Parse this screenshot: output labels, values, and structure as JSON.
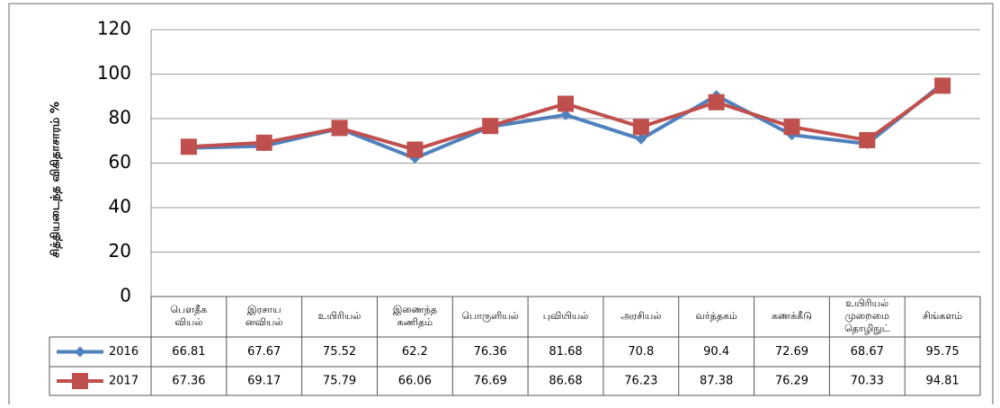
{
  "chart_data": {
    "type": "line",
    "ylabel": "சித்தியடைந்த விகிதாசாரம் %",
    "categories": [
      [
        "பௌதீக",
        "வியல்"
      ],
      [
        "இரசாய",
        "னவியல்"
      ],
      [
        "உயிரியல்"
      ],
      [
        "இணைந்த",
        "கணிதம்"
      ],
      [
        "பொருளியல்"
      ],
      [
        "புவியியல்"
      ],
      [
        "அரசியல்"
      ],
      [
        "வர்த்தகம்"
      ],
      [
        "கணக்கீடு"
      ],
      [
        "உயிரியல்",
        "முறைமை",
        "தொழிநுட்"
      ],
      [
        "சிங்களம்"
      ]
    ],
    "series": [
      {
        "name": "2016",
        "color": "#4f81bd",
        "marker": "diamond",
        "values": [
          66.81,
          67.67,
          75.52,
          62.2,
          76.36,
          81.68,
          70.8,
          90.4,
          72.69,
          68.67,
          95.75
        ]
      },
      {
        "name": "2017",
        "color": "#c0504d",
        "marker": "square",
        "values": [
          67.36,
          69.17,
          75.79,
          66.06,
          76.69,
          86.68,
          76.23,
          87.38,
          76.29,
          70.33,
          94.81
        ]
      }
    ],
    "ylim": [
      0,
      120
    ],
    "yticks": [
      0,
      20,
      40,
      60,
      80,
      100,
      120
    ],
    "grid": true
  }
}
